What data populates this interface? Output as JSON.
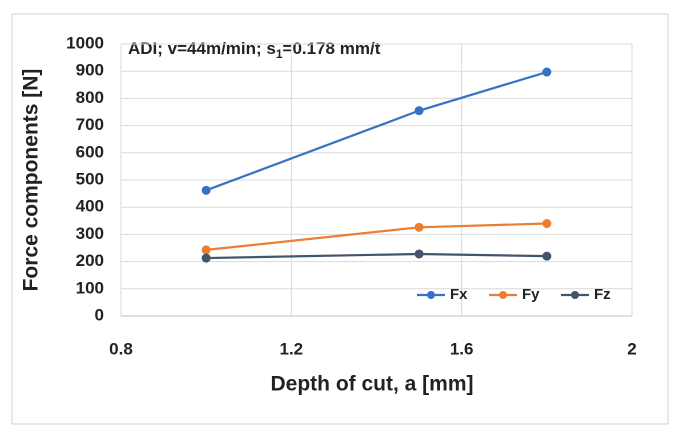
{
  "chart_data": {
    "type": "line",
    "annotation": {
      "text": "ADI; v=44m/min; s",
      "subscript": "1",
      "text_after": "=0.178 mm/t"
    },
    "x_label": "Depth of cut, a  [mm]",
    "y_label": "Force components [N]",
    "x": [
      1.0,
      1.5,
      1.8
    ],
    "series": [
      {
        "name": "Fx",
        "color": "#3572c6",
        "values": [
          462,
          755,
          897
        ]
      },
      {
        "name": "Fy",
        "color": "#ed7d31",
        "values": [
          243,
          326,
          340
        ]
      },
      {
        "name": "Fz",
        "color": "#44546a",
        "values": [
          213,
          228,
          220
        ]
      }
    ],
    "xlim": [
      0.8,
      2
    ],
    "xticks": [
      0.8,
      1.2,
      1.6,
      2
    ],
    "ylim": [
      0,
      1000
    ],
    "yticks": [
      0,
      100,
      200,
      300,
      400,
      500,
      600,
      700,
      800,
      900,
      1000
    ],
    "grid": true,
    "legend": "lower right"
  }
}
